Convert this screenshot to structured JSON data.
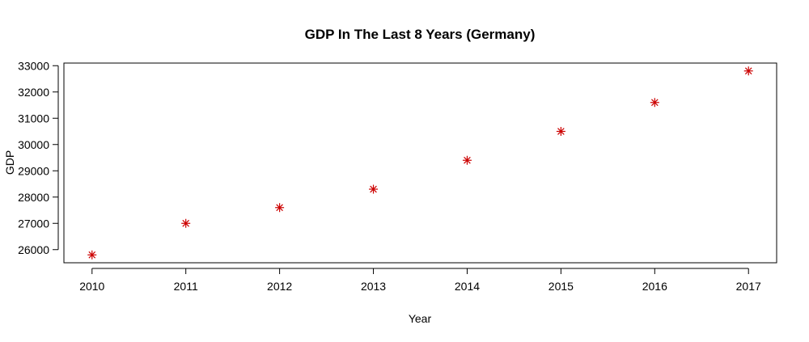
{
  "chart_data": {
    "type": "scatter",
    "title": "GDP In The Last 8 Years (Germany)",
    "xlabel": "Year",
    "ylabel": "GDP",
    "x": [
      2010,
      2011,
      2012,
      2013,
      2014,
      2015,
      2016,
      2017
    ],
    "series": [
      {
        "values": [
          25800,
          27000,
          27600,
          28300,
          29400,
          30500,
          31600,
          32800
        ],
        "color": "#cc0000",
        "marker": "asterisk"
      }
    ],
    "xlim": [
      2009.7,
      2017.3
    ],
    "ylim": [
      25500,
      33100
    ],
    "xticks": [
      2010,
      2011,
      2012,
      2013,
      2014,
      2015,
      2016,
      2017
    ],
    "yticks": [
      26000,
      27000,
      28000,
      29000,
      30000,
      31000,
      32000,
      33000
    ],
    "grid": false,
    "legend": "none"
  }
}
